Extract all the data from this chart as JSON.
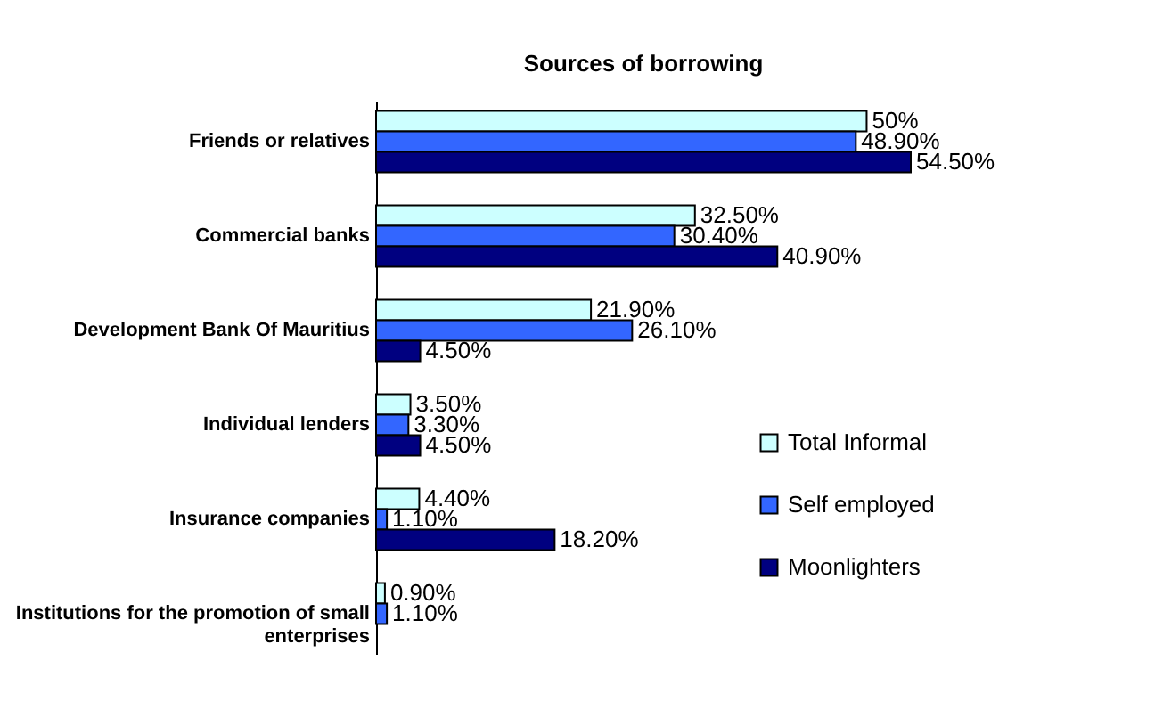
{
  "chart_data": {
    "type": "bar",
    "orientation": "horizontal",
    "title": "Sources of borrowing",
    "categories": [
      "Friends or relatives",
      "Commercial banks",
      "Development Bank Of Mauritius",
      "Individual lenders",
      "Insurance companies",
      "Institutions for the promotion of small enterprises"
    ],
    "series": [
      {
        "name": "Total Informal",
        "color": "#ccffff",
        "values": [
          50,
          32.5,
          21.9,
          3.5,
          4.4,
          0.9
        ],
        "value_labels": [
          "50%",
          "32.50%",
          "21.90%",
          "3.50%",
          "4.40%",
          "0.90%"
        ]
      },
      {
        "name": "Self employed",
        "color": "#3366ff",
        "values": [
          48.9,
          30.4,
          26.1,
          3.3,
          1.1,
          1.1
        ],
        "value_labels": [
          "48.90%",
          "30.40%",
          "26.10%",
          "3.30%",
          "1.10%",
          "1.10%"
        ]
      },
      {
        "name": "Moonlighters",
        "color": "#000080",
        "values": [
          54.5,
          40.9,
          4.5,
          4.5,
          18.2,
          null
        ],
        "value_labels": [
          "54.50%",
          "40.90%",
          "4.50%",
          "4.50%",
          "18.20%",
          null
        ]
      }
    ],
    "legend": "right"
  }
}
